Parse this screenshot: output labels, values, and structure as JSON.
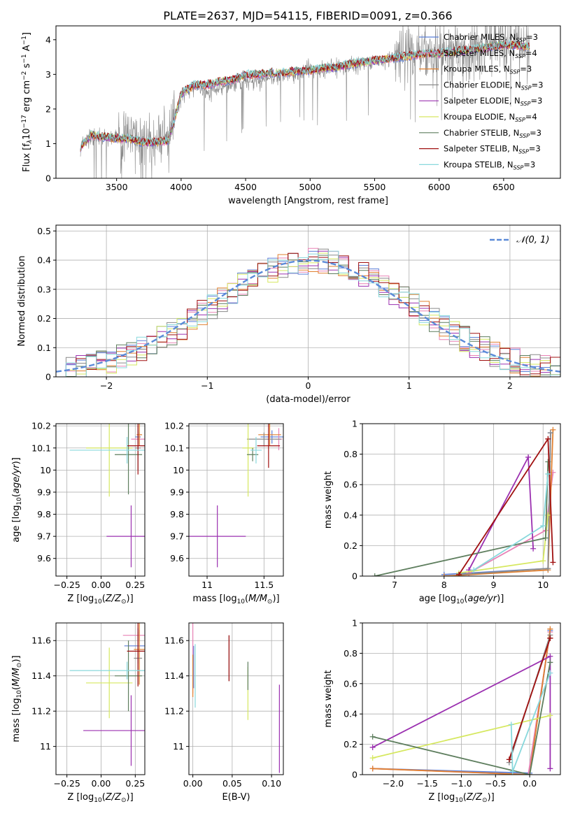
{
  "figure": {
    "title": "PLATE=2637, MJD=54115, FIBERID=0091, z=0.366"
  },
  "colors": {
    "Chabrier MILES": "#5b7fd8",
    "Salpeter MILES": "#e882b6",
    "Kroupa MILES": "#e08030",
    "Chabrier ELODIE": "#8a8a8a",
    "Salpeter ELODIE": "#9b30b0",
    "Kroupa ELODIE": "#d6e860",
    "Chabrier STELIB": "#5e7e5e",
    "Salpeter STELIB": "#a01010",
    "Kroupa STELIB": "#88d8dc",
    "normal_curve": "#5b8ad8"
  },
  "chart_data": [
    {
      "id": "spectrum",
      "type": "line",
      "xlabel": "wavelength [Angstrom, rest frame]",
      "ylabel": "Flux [fλ10⁻¹⁷ erg cm⁻² s⁻¹ A⁻¹]",
      "xlim": [
        3030,
        6940
      ],
      "ylim": [
        0,
        4.4
      ],
      "xticks": [
        3500,
        4000,
        4500,
        5000,
        5500,
        6000,
        6500
      ],
      "yticks": [
        0,
        1,
        2,
        3,
        4
      ],
      "legend": [
        {
          "label": "Chabrier MILES, N_SSP=3",
          "color": "#5b7fd8"
        },
        {
          "label": "Salpeter MILES, N_SSP=4",
          "color": "#e882b6"
        },
        {
          "label": "Kroupa MILES, N_SSP=3",
          "color": "#e08030"
        },
        {
          "label": "Chabrier ELODIE, N_SSP=3",
          "color": "#8a8a8a"
        },
        {
          "label": "Salpeter ELODIE, N_SSP=3",
          "color": "#9b30b0"
        },
        {
          "label": "Kroupa ELODIE, N_SSP=4",
          "color": "#d6e860"
        },
        {
          "label": "Chabrier STELIB, N_SSP=3",
          "color": "#5e7e5e"
        },
        {
          "label": "Salpeter STELIB, N_SSP=3",
          "color": "#a01010"
        },
        {
          "label": "Kroupa STELIB, N_SSP=3",
          "color": "#88d8dc"
        }
      ],
      "legend_placement": "upper right",
      "data_trace": {
        "x": [
          3220,
          3300,
          3400,
          3500,
          3600,
          3700,
          3800,
          3900,
          4000,
          4100,
          4200,
          4300,
          4400,
          4500,
          4600,
          4700,
          4800,
          4900,
          5000,
          5100,
          5200,
          5300,
          5400,
          5500,
          5600,
          5700,
          5800,
          5900,
          6000,
          6100,
          6200,
          6300,
          6400,
          6500,
          6600,
          6700
        ],
        "y": [
          0.95,
          1.2,
          1.2,
          1.1,
          1.2,
          1.0,
          1.1,
          1.1,
          2.4,
          2.6,
          2.5,
          2.6,
          2.7,
          2.8,
          2.8,
          2.9,
          3.0,
          3.0,
          3.2,
          3.1,
          3.2,
          3.2,
          3.3,
          3.4,
          3.4,
          3.5,
          3.6,
          3.7,
          3.7,
          3.7,
          3.8,
          3.8,
          3.9,
          3.9,
          3.9,
          3.7
        ],
        "color": "#8a8a8a",
        "noise_amplitude": 1.2
      },
      "model_trace": {
        "x": [
          3220,
          3300,
          3400,
          3500,
          3600,
          3700,
          3800,
          3900,
          3950,
          4000,
          4100,
          4200,
          4300,
          4400,
          4500,
          4600,
          4700,
          4800,
          4900,
          5000,
          5100,
          5200,
          5300,
          5400,
          5500,
          5600,
          5700,
          5800,
          5900,
          6000,
          6100,
          6200,
          6300,
          6400,
          6500,
          6600,
          6700
        ],
        "y": [
          0.9,
          1.25,
          1.2,
          1.15,
          1.15,
          1.05,
          1.05,
          1.1,
          1.7,
          2.45,
          2.7,
          2.7,
          2.8,
          2.85,
          3.0,
          3.0,
          3.05,
          3.05,
          3.1,
          3.1,
          3.2,
          3.2,
          3.3,
          3.35,
          3.4,
          3.45,
          3.5,
          3.55,
          3.6,
          3.6,
          3.65,
          3.7,
          3.75,
          3.8,
          3.85,
          3.85,
          3.8
        ]
      }
    },
    {
      "id": "residuals",
      "type": "histogram",
      "xlabel": "(data-model)/error",
      "ylabel": "Normed distribution",
      "xlim": [
        -2.5,
        2.5
      ],
      "ylim": [
        0,
        0.52
      ],
      "xticks": [
        -2,
        -1,
        0,
        1,
        2
      ],
      "yticks": [
        0.0,
        0.1,
        0.2,
        0.3,
        0.4,
        0.5
      ],
      "grid": true,
      "legend": [
        {
          "label": "N(0,1)",
          "color": "#5b8ad8",
          "style": "dashed"
        }
      ],
      "legend_placement": "upper right",
      "bin_edges_range": [
        -2.5,
        2.5
      ],
      "n_bins": 50,
      "normal_curve": {
        "mean": 0,
        "sigma": 1
      }
    },
    {
      "id": "age_vs_Z",
      "type": "errorbar",
      "xlabel": "Z [log10(Z/Z⊙)]",
      "ylabel": "age [log10(age/yr)]",
      "xlim": [
        -0.33,
        0.32
      ],
      "ylim": [
        9.52,
        10.21
      ],
      "xticks": [
        -0.25,
        0.0,
        0.25
      ],
      "xticklabels": [
        "−0.25",
        "0.00",
        "0.25"
      ],
      "yticks": [
        9.6,
        9.7,
        9.8,
        9.9,
        10.0,
        10.1,
        10.2
      ],
      "grid": true,
      "points": [
        {
          "model": "Chabrier MILES",
          "x": 0.27,
          "xerr": 0.02,
          "y": 10.15,
          "yerr": 0.03
        },
        {
          "model": "Salpeter MILES",
          "x": 0.28,
          "xerr": 0.06,
          "y": 10.14,
          "yerr": 0.03
        },
        {
          "model": "Kroupa MILES",
          "x": 0.28,
          "xerr": 0.02,
          "y": 10.16,
          "yerr": 0.05
        },
        {
          "model": "Chabrier ELODIE",
          "x": 0.27,
          "xerr": 0.02,
          "y": 10.1,
          "yerr": 0.1
        },
        {
          "model": "Salpeter ELODIE",
          "x": 0.22,
          "xerr": 0.18,
          "y": 9.7,
          "yerr": 0.14
        },
        {
          "model": "Kroupa ELODIE",
          "x": 0.06,
          "xerr": 0.17,
          "y": 10.1,
          "yerr": 0.22
        },
        {
          "model": "Chabrier STELIB",
          "x": 0.2,
          "xerr": 0.1,
          "y": 10.07,
          "yerr": 0.18
        },
        {
          "model": "Salpeter STELIB",
          "x": 0.27,
          "xerr": 0.08,
          "y": 10.11,
          "yerr": 0.13
        },
        {
          "model": "Kroupa STELIB",
          "x": 0.19,
          "xerr": 0.42,
          "y": 10.09,
          "yerr": 0.06
        }
      ]
    },
    {
      "id": "age_vs_mass",
      "type": "errorbar",
      "xlabel": "mass [log10(M/M⊙)]",
      "xlim": [
        10.84,
        11.67
      ],
      "ylim": [
        9.52,
        10.21
      ],
      "xticks": [
        11.0,
        11.5
      ],
      "yticks": [
        9.6,
        9.7,
        9.8,
        9.9,
        10.0,
        10.1,
        10.2
      ],
      "grid": true,
      "points": [
        {
          "model": "Chabrier MILES",
          "x": 11.57,
          "xerr": 0.1,
          "y": 10.15,
          "yerr": 0.03
        },
        {
          "model": "Salpeter MILES",
          "x": 11.63,
          "xerr": 0.03,
          "y": 10.14,
          "yerr": 0.05
        },
        {
          "model": "Kroupa MILES",
          "x": 11.55,
          "xerr": 0.1,
          "y": 10.16,
          "yerr": 0.05
        },
        {
          "model": "Chabrier ELODIE",
          "x": 11.5,
          "xerr": 0.15,
          "y": 10.14,
          "yerr": 0.03
        },
        {
          "model": "Salpeter ELODIE",
          "x": 11.09,
          "xerr": 0.25,
          "y": 9.7,
          "yerr": 0.14
        },
        {
          "model": "Kroupa ELODIE",
          "x": 11.36,
          "xerr": 0.05,
          "y": 10.1,
          "yerr": 0.22
        },
        {
          "model": "Chabrier STELIB",
          "x": 11.4,
          "xerr": 0.05,
          "y": 10.07,
          "yerr": 0.03
        },
        {
          "model": "Salpeter STELIB",
          "x": 11.54,
          "xerr": 0.1,
          "y": 10.11,
          "yerr": 0.1
        },
        {
          "model": "Kroupa STELIB",
          "x": 11.43,
          "xerr": 0.05,
          "y": 10.09,
          "yerr": 0.06
        }
      ]
    },
    {
      "id": "weight_vs_age",
      "type": "line",
      "xlabel": "age [log10(age/yr)]",
      "ylabel": "mass weight",
      "xlim": [
        6.35,
        10.35
      ],
      "ylim": [
        0.0,
        1.0
      ],
      "xticks": [
        7,
        8,
        9,
        10
      ],
      "yticks": [
        0.0,
        0.2,
        0.4,
        0.6,
        0.8,
        1.0
      ],
      "grid": true,
      "series": [
        {
          "model": "Chabrier MILES",
          "x": [
            8.0,
            10.1,
            10.15
          ],
          "y": [
            0.01,
            0.05,
            0.94
          ]
        },
        {
          "model": "Salpeter MILES",
          "x": [
            8.5,
            10.05,
            10.2
          ],
          "y": [
            0.02,
            0.3,
            0.68
          ]
        },
        {
          "model": "Kroupa MILES",
          "x": [
            8.0,
            10.1,
            10.2
          ],
          "y": [
            0.0,
            0.04,
            0.96
          ]
        },
        {
          "model": "Chabrier ELODIE",
          "x": [
            8.3,
            10.1,
            10.15
          ],
          "y": [
            0.01,
            0.05,
            0.94
          ]
        },
        {
          "model": "Salpeter ELODIE",
          "x": [
            8.5,
            9.7,
            9.8
          ],
          "y": [
            0.04,
            0.78,
            0.18
          ]
        },
        {
          "model": "Kroupa ELODIE",
          "x": [
            8.3,
            10.0,
            10.1
          ],
          "y": [
            0.02,
            0.1,
            0.4
          ]
        },
        {
          "model": "Chabrier STELIB",
          "x": [
            6.6,
            10.05,
            10.1
          ],
          "y": [
            0.0,
            0.25,
            0.75
          ]
        },
        {
          "model": "Salpeter STELIB",
          "x": [
            8.3,
            10.1,
            10.2
          ],
          "y": [
            0.01,
            0.9,
            0.09
          ]
        },
        {
          "model": "Kroupa STELIB",
          "x": [
            8.6,
            10.0,
            10.1
          ],
          "y": [
            0.04,
            0.33,
            0.67
          ]
        }
      ]
    },
    {
      "id": "mass_vs_Z",
      "type": "errorbar",
      "xlabel": "Z [log10(Z/Z⊙)]",
      "ylabel": "mass [log10(M/M⊙)]",
      "xlim": [
        -0.33,
        0.32
      ],
      "ylim": [
        10.84,
        11.7
      ],
      "xticks": [
        -0.25,
        0.0,
        0.25
      ],
      "xticklabels": [
        "−0.25",
        "0.00",
        "0.25"
      ],
      "yticks": [
        11.0,
        11.2,
        11.4,
        11.6
      ],
      "grid": true,
      "points": [
        {
          "model": "Chabrier MILES",
          "x": 0.27,
          "xerr": 0.1,
          "y": 11.57,
          "yerr": 0.1
        },
        {
          "model": "Salpeter MILES",
          "x": 0.28,
          "xerr": 0.12,
          "y": 11.63,
          "yerr": 0.03
        },
        {
          "model": "Kroupa MILES",
          "x": 0.28,
          "xerr": 0.04,
          "y": 11.55,
          "yerr": 0.2
        },
        {
          "model": "Chabrier ELODIE",
          "x": 0.27,
          "xerr": 0.03,
          "y": 11.5,
          "yerr": 0.15
        },
        {
          "model": "Salpeter ELODIE",
          "x": 0.22,
          "xerr": 0.35,
          "y": 11.09,
          "yerr": 0.2
        },
        {
          "model": "Kroupa ELODIE",
          "x": 0.06,
          "xerr": 0.17,
          "y": 11.36,
          "yerr": 0.2
        },
        {
          "model": "Chabrier STELIB",
          "x": 0.2,
          "xerr": 0.1,
          "y": 11.4,
          "yerr": 0.2
        },
        {
          "model": "Salpeter STELIB",
          "x": 0.27,
          "xerr": 0.08,
          "y": 11.54,
          "yerr": 0.2
        },
        {
          "model": "Kroupa STELIB",
          "x": 0.19,
          "xerr": 0.42,
          "y": 11.43,
          "yerr": 0.05
        }
      ]
    },
    {
      "id": "mass_vs_ebv",
      "type": "errorbar",
      "xlabel": "E(B-V)",
      "xlim": [
        -0.005,
        0.115
      ],
      "ylim": [
        10.84,
        11.7
      ],
      "xticks": [
        0.0,
        0.05,
        0.1
      ],
      "xticklabels": [
        "0.00",
        "0.05",
        "0.10"
      ],
      "yticks": [
        11.0,
        11.2,
        11.4,
        11.6
      ],
      "grid": true,
      "points": [
        {
          "model": "Chabrier MILES",
          "x": 0.001,
          "xerr": 0,
          "y": 11.45,
          "yerr": 0.12
        },
        {
          "model": "Salpeter MILES",
          "x": 0.0,
          "xerr": 0,
          "y": 11.5,
          "yerr": 0.2
        },
        {
          "model": "Kroupa MILES",
          "x": 0.0,
          "xerr": 0,
          "y": 11.4,
          "yerr": 0.12
        },
        {
          "model": "Chabrier ELODIE",
          "x": 0.046,
          "xerr": 0,
          "y": 11.5,
          "yerr": 0.13
        },
        {
          "model": "Salpeter ELODIE",
          "x": 0.11,
          "xerr": 0,
          "y": 11.1,
          "yerr": 0.25
        },
        {
          "model": "Kroupa ELODIE",
          "x": 0.07,
          "xerr": 0,
          "y": 11.3,
          "yerr": 0.15
        },
        {
          "model": "Chabrier STELIB",
          "x": 0.07,
          "xerr": 0,
          "y": 11.4,
          "yerr": 0.08
        },
        {
          "model": "Salpeter STELIB",
          "x": 0.046,
          "xerr": 0,
          "y": 11.5,
          "yerr": 0.13
        },
        {
          "model": "Kroupa STELIB",
          "x": 0.003,
          "xerr": 0,
          "y": 11.4,
          "yerr": 0.18
        }
      ]
    },
    {
      "id": "weight_vs_Z",
      "type": "line",
      "xlabel": "Z [log10(Z/Z⊙)]",
      "ylabel": "mass weight",
      "xlim": [
        -2.45,
        0.45
      ],
      "ylim": [
        0.0,
        1.0
      ],
      "xticks": [
        -2.0,
        -1.5,
        -1.0,
        -0.5,
        0.0
      ],
      "xticklabels": [
        "−2.0",
        "−1.5",
        "−1.0",
        "−0.5",
        "0.0"
      ],
      "yticks": [
        0.0,
        0.2,
        0.4,
        0.6,
        0.8,
        1.0
      ],
      "grid": true,
      "series": [
        {
          "model": "Chabrier MILES",
          "x": [
            -2.3,
            0.0,
            0.3
          ],
          "y": [
            0.04,
            0.01,
            0.95
          ]
        },
        {
          "model": "Salpeter MILES",
          "x": [
            -2.3,
            -0.02,
            0.3
          ],
          "y": [
            0.04,
            0.0,
            0.94
          ]
        },
        {
          "model": "Kroupa MILES",
          "x": [
            -2.3,
            0.0,
            0.3
          ],
          "y": [
            0.04,
            0.0,
            0.96
          ]
        },
        {
          "model": "Chabrier ELODIE",
          "x": [
            -0.3,
            0.3,
            0.3
          ],
          "y": [
            0.08,
            0.92,
            0.9
          ]
        },
        {
          "model": "Salpeter ELODIE",
          "x": [
            -2.3,
            0.3,
            0.3
          ],
          "y": [
            0.18,
            0.78,
            0.04
          ]
        },
        {
          "model": "Kroupa ELODIE",
          "x": [
            -2.3,
            0.3
          ],
          "y": [
            0.11,
            0.39
          ]
        },
        {
          "model": "Chabrier STELIB",
          "x": [
            -2.3,
            0.0,
            0.3
          ],
          "y": [
            0.25,
            0.0,
            0.74
          ]
        },
        {
          "model": "Salpeter STELIB",
          "x": [
            -0.3,
            0.3,
            0.3
          ],
          "y": [
            0.1,
            0.9,
            0.9
          ]
        },
        {
          "model": "Kroupa STELIB",
          "x": [
            -0.27,
            -0.25,
            0.3
          ],
          "y": [
            0.33,
            0.02,
            0.67
          ]
        }
      ]
    }
  ]
}
